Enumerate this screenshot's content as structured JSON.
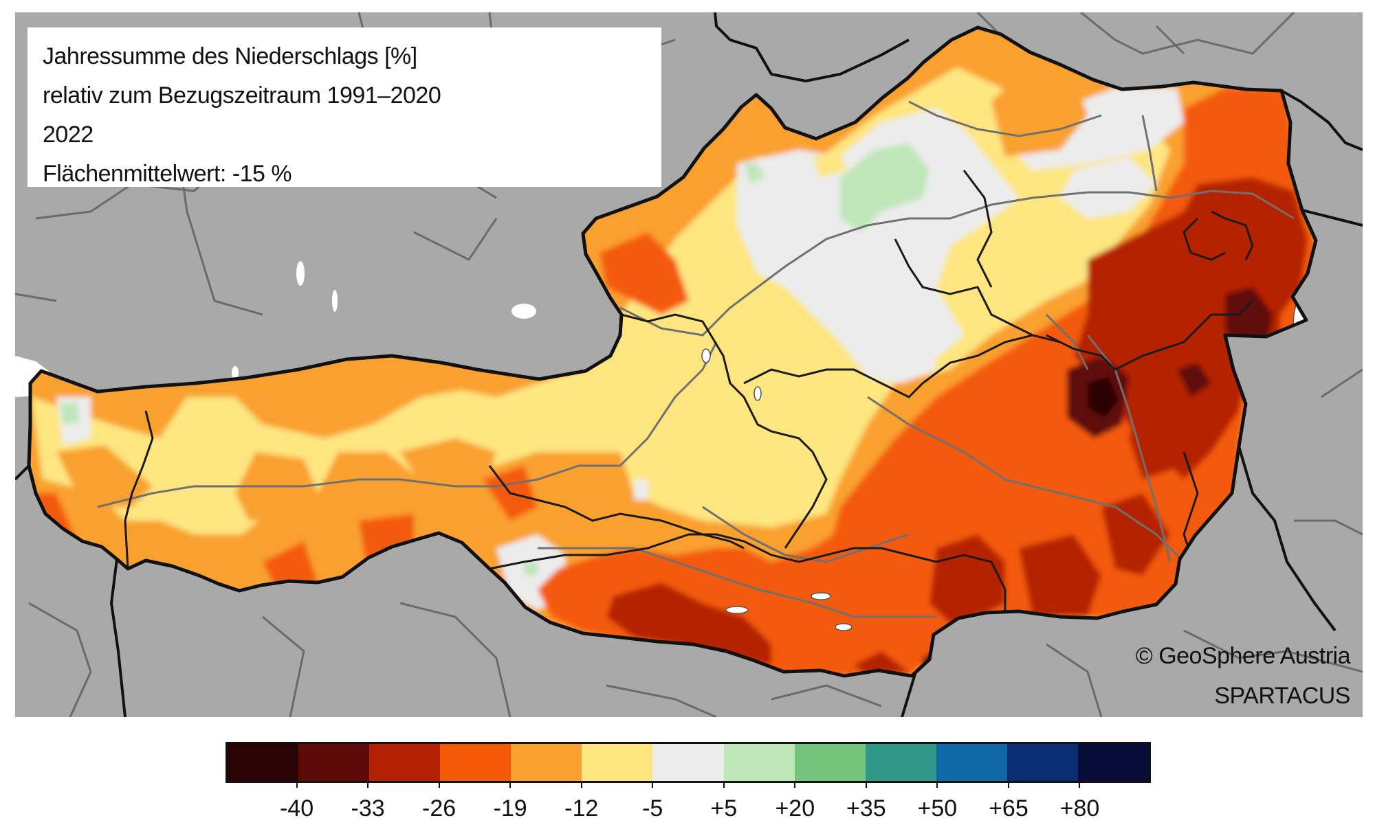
{
  "title": {
    "line1": "Jahressumme des Niederschlags [%]",
    "line2": "relativ zum Bezugszeitraum 1991–2020",
    "line3": "2022",
    "line4": "Flächenmittelwert: -15 %"
  },
  "credits": {
    "copyright": "© GeoSphere Austria",
    "dataset": "SPARTACUS"
  },
  "legend": {
    "colors": [
      "#2a0404",
      "#5e0a08",
      "#b52005",
      "#f45a0a",
      "#f9a02e",
      "#fde680",
      "#ececec",
      "#bfe6b9",
      "#74c47c",
      "#2e9787",
      "#1268a4",
      "#0c2c73",
      "#060e38"
    ],
    "ticks": [
      "-40",
      "-33",
      "-26",
      "-19",
      "-12",
      "-5",
      "+5",
      "+20",
      "+35",
      "+50",
      "+65",
      "+80"
    ]
  },
  "map_colors": {
    "surroundings": "#a9a9a9",
    "country_border": "#111111",
    "state_border": "#1a1a1a",
    "rivers": "#707070"
  }
}
